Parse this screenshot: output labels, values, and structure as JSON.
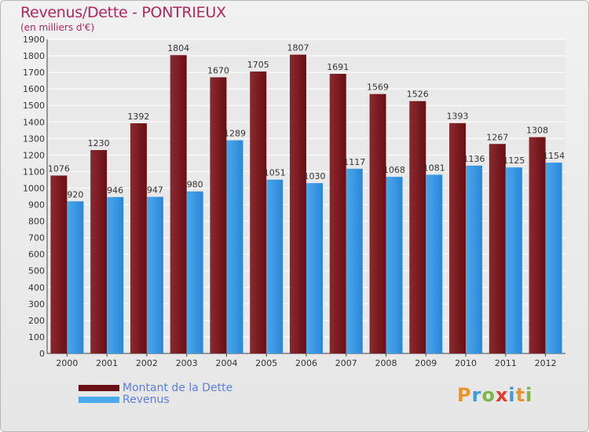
{
  "title": "Revenus/Dette - PONTRIEUX",
  "subtitle": "(en milliers d'€)",
  "logo": "Proxiti",
  "colors": {
    "dette": "#6a0f14",
    "dette_light": "#8a2a30",
    "revenus": "#2b87d8",
    "revenus_light": "#4aa8ec",
    "title": "#b0275e"
  },
  "legend": {
    "dette": "Montant de la Dette",
    "revenus": "Revenus"
  },
  "chart_data": {
    "type": "bar",
    "title": "Revenus/Dette - PONTRIEUX",
    "ylabel": "(en milliers d'€)",
    "categories": [
      "2000",
      "2001",
      "2002",
      "2003",
      "2004",
      "2005",
      "2006",
      "2007",
      "2008",
      "2009",
      "2010",
      "2011",
      "2012"
    ],
    "series": [
      {
        "name": "Montant de la Dette",
        "values": [
          1076,
          1230,
          1392,
          1804,
          1670,
          1705,
          1807,
          1691,
          1569,
          1526,
          1393,
          1267,
          1308
        ]
      },
      {
        "name": "Revenus",
        "values": [
          920,
          946,
          947,
          980,
          1289,
          1051,
          1030,
          1117,
          1068,
          1081,
          1136,
          1125,
          1154
        ]
      }
    ],
    "ylim": [
      0,
      1900
    ],
    "yticks": [
      0,
      100,
      200,
      300,
      400,
      500,
      600,
      700,
      800,
      900,
      1000,
      1100,
      1200,
      1300,
      1400,
      1500,
      1600,
      1700,
      1800,
      1900
    ],
    "grid": true
  }
}
